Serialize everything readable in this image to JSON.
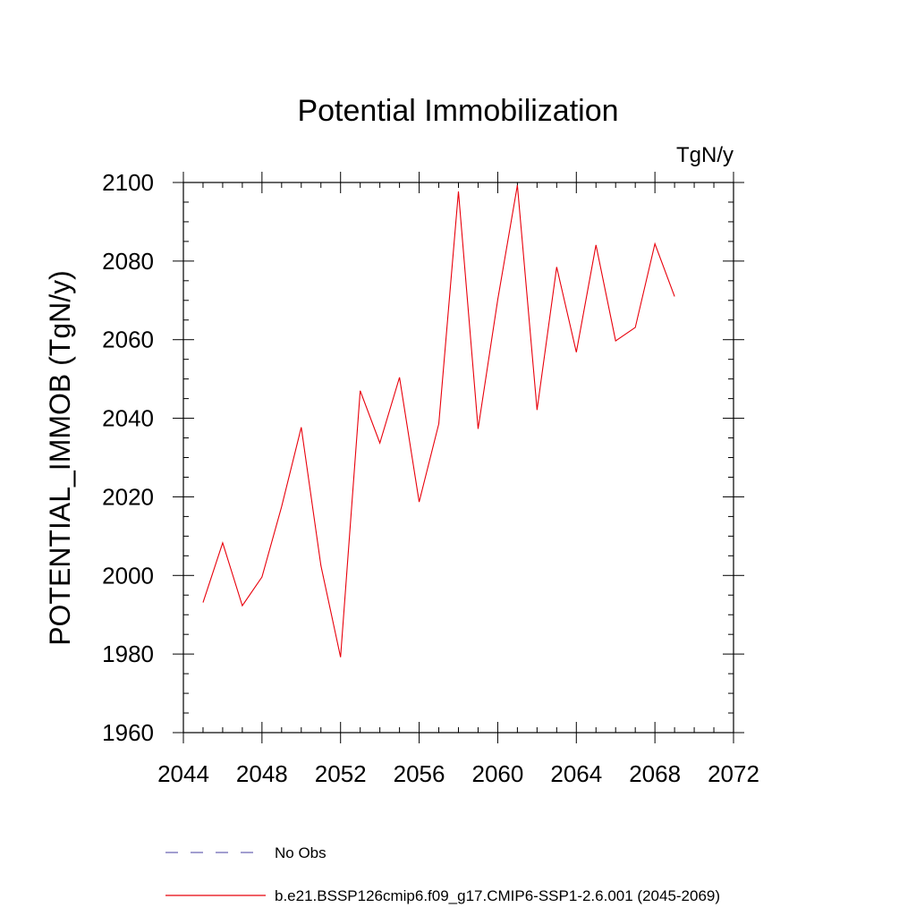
{
  "chart_data": {
    "type": "line",
    "title": "Potential Immobilization",
    "units_label": "TgN/y",
    "ylabel": "POTENTIAL_IMMOB  (TgN/y)",
    "xlabel": "",
    "xlim": [
      2044,
      2072
    ],
    "ylim": [
      1960,
      2100
    ],
    "x_ticks": [
      2044,
      2048,
      2052,
      2056,
      2060,
      2064,
      2068,
      2072
    ],
    "y_ticks": [
      1960,
      1980,
      2000,
      2020,
      2040,
      2060,
      2080,
      2100
    ],
    "x_tick_labels": [
      "2044",
      "2048",
      "2052",
      "2056",
      "2060",
      "2064",
      "2068",
      "2072"
    ],
    "y_tick_labels": [
      "1960",
      "1980",
      "2000",
      "2020",
      "2040",
      "2060",
      "2080",
      "2100"
    ],
    "x_minor_step": 1,
    "y_minor_step": 5,
    "grid": false,
    "series": [
      {
        "name": "b.e21.BSSP126cmip6.f09_g17.CMIP6-SSP1-2.6.001 (2045-2069)",
        "color": "#e8000b",
        "style": "solid",
        "x": [
          2045,
          2046,
          2047,
          2048,
          2049,
          2050,
          2051,
          2052,
          2053,
          2054,
          2055,
          2056,
          2057,
          2058,
          2059,
          2060,
          2061,
          2062,
          2063,
          2064,
          2065,
          2066,
          2067,
          2068,
          2069
        ],
        "values": [
          1993.1,
          2008.3,
          1992.3,
          1999.6,
          2017.5,
          2037.7,
          2002.5,
          1979.2,
          2047.0,
          2033.7,
          2050.4,
          2018.7,
          2038.6,
          2097.7,
          2037.3,
          2070.2,
          2099.3,
          2042.1,
          2078.5,
          2056.8,
          2084.1,
          2059.7,
          2063.1,
          2084.4,
          2071.0
        ]
      }
    ],
    "legend": [
      {
        "label": "No Obs",
        "color": "#6b64b4",
        "style": "dashed"
      },
      {
        "label": "b.e21.BSSP126cmip6.f09_g17.CMIP6-SSP1-2.6.001 (2045-2069)",
        "color": "#e8000b",
        "style": "solid"
      }
    ],
    "legend_position": "bottom"
  }
}
